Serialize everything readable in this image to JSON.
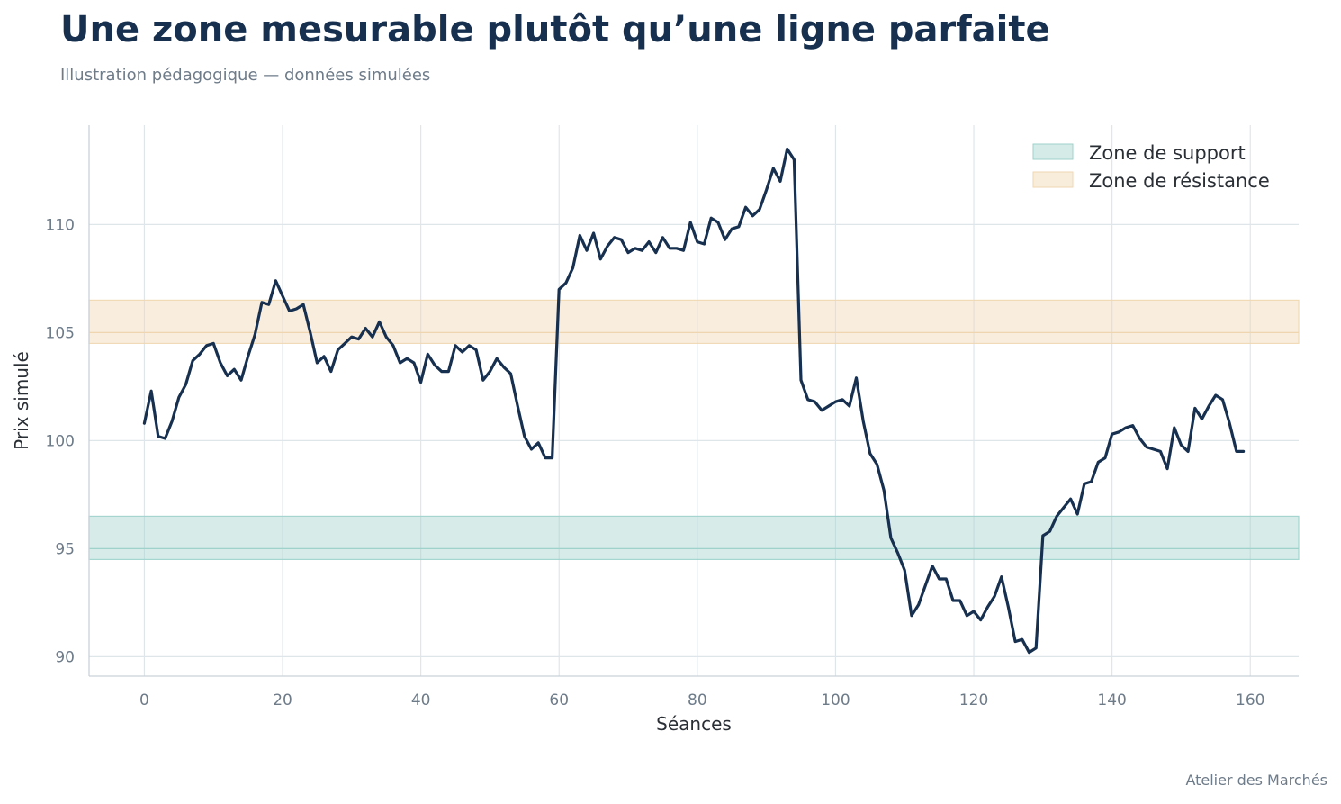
{
  "header": {
    "title": "Une zone mesurable plutôt qu’une ligne parfaite",
    "subtitle": "Illustration pédagogique — données simulées"
  },
  "footer": {
    "credit": "Atelier des Marchés"
  },
  "colors": {
    "line": "#17304f",
    "support": "#9fd2cb",
    "resistance": "#f0d6b0",
    "grid": "#dfe6ea",
    "axis": "#c9d2da",
    "text_muted": "#6e7b89"
  },
  "chart_data": {
    "type": "line",
    "xlabel": "Séances",
    "ylabel": "Prix simulé",
    "xlim": [
      -8,
      167
    ],
    "ylim": [
      89.1,
      114.6
    ],
    "xticks": [
      0,
      20,
      40,
      60,
      80,
      100,
      120,
      140,
      160
    ],
    "yticks": [
      90,
      95,
      100,
      105,
      110
    ],
    "grid": true,
    "legend_position": "top-right",
    "bands": [
      {
        "name": "Zone de support",
        "y_range": [
          94.5,
          96.5
        ],
        "center": 95,
        "color": "#9fd2cb"
      },
      {
        "name": "Zone de résistance",
        "y_range": [
          104.5,
          106.5
        ],
        "center": 105,
        "color": "#f0d6b0"
      }
    ],
    "series": [
      {
        "color": "#17304f",
        "x_start": 0,
        "x_step": 1,
        "values": [
          100.8,
          102.3,
          100.2,
          100.1,
          100.9,
          102.0,
          102.6,
          103.7,
          104.0,
          104.4,
          104.5,
          103.6,
          103.0,
          103.3,
          102.8,
          103.9,
          104.9,
          106.4,
          106.3,
          107.4,
          106.7,
          106.0,
          106.1,
          106.3,
          105.0,
          103.6,
          103.9,
          103.2,
          104.2,
          104.5,
          104.8,
          104.7,
          105.2,
          104.8,
          105.5,
          104.8,
          104.4,
          103.6,
          103.8,
          103.6,
          102.7,
          104.0,
          103.5,
          103.2,
          103.2,
          104.4,
          104.1,
          104.4,
          104.2,
          102.8,
          103.2,
          103.8,
          103.4,
          103.1,
          101.6,
          100.2,
          99.6,
          99.9,
          99.2,
          99.2,
          107.0,
          107.3,
          108.0,
          109.5,
          108.8,
          109.6,
          108.4,
          109.0,
          109.4,
          109.3,
          108.7,
          108.9,
          108.8,
          109.2,
          108.7,
          109.4,
          108.9,
          108.9,
          108.8,
          110.1,
          109.2,
          109.1,
          110.3,
          110.1,
          109.3,
          109.8,
          109.9,
          110.8,
          110.4,
          110.7,
          111.6,
          112.6,
          112.0,
          113.5,
          113.0,
          102.8,
          101.9,
          101.8,
          101.4,
          101.6,
          101.8,
          101.9,
          101.6,
          102.9,
          100.9,
          99.4,
          98.9,
          97.7,
          95.5,
          94.8,
          94.0,
          91.9,
          92.4,
          93.3,
          94.2,
          93.6,
          93.6,
          92.6,
          92.6,
          91.9,
          92.1,
          91.7,
          92.3,
          92.8,
          93.7,
          92.3,
          90.7,
          90.8,
          90.2,
          90.4,
          95.6,
          95.8,
          96.5,
          96.9,
          97.3,
          96.6,
          98.0,
          98.1,
          99.0,
          99.2,
          100.3,
          100.4,
          100.6,
          100.7,
          100.1,
          99.7,
          99.6,
          99.5,
          98.7,
          100.6,
          99.8,
          99.5,
          101.5,
          101.0,
          101.6,
          102.1,
          101.9,
          100.8,
          99.5,
          99.5
        ]
      }
    ]
  }
}
